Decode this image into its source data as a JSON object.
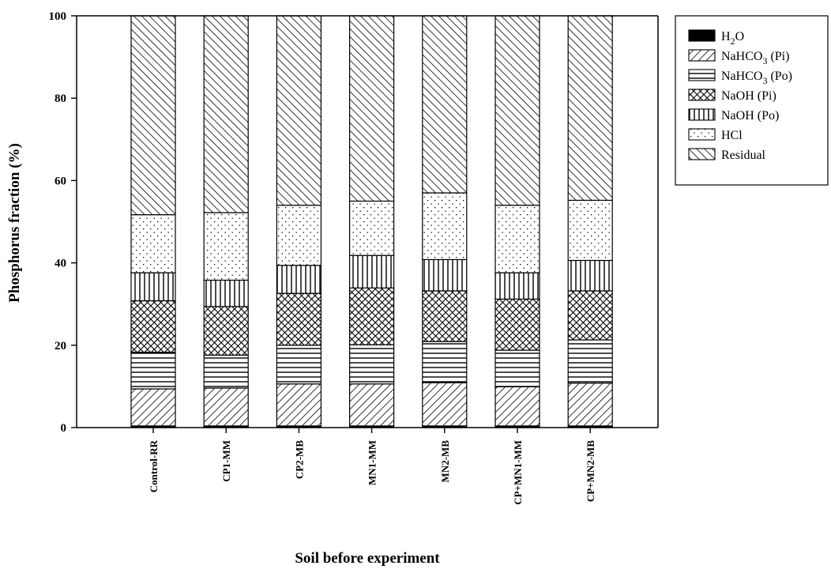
{
  "chart_data": {
    "type": "bar",
    "stacked": true,
    "xlabel": "Soil before experiment",
    "ylabel": "Phosphorus fraction (%)",
    "ylim": [
      0,
      100
    ],
    "yticks": [
      "0",
      "20",
      "40",
      "60",
      "80",
      "100"
    ],
    "categories": [
      "Control-RR",
      "CP1-MM",
      "CP2-MB",
      "MN1-MM",
      "MN2-MB",
      "CP+MN1-MM",
      "CP+MN2-MB"
    ],
    "legend_position": "top-right, outside plot",
    "series": [
      {
        "name": "H2O",
        "label_main": "H",
        "label_sub": "2",
        "label_tail": "O",
        "pattern": "solid",
        "values": [
          0.4,
          0.4,
          0.4,
          0.4,
          0.4,
          0.4,
          0.4
        ]
      },
      {
        "name": "NaHCO3 (Pi)",
        "label_main": "NaHCO",
        "label_sub": "3",
        "label_tail": " (Pi)",
        "pattern": "diag-fwd",
        "values": [
          9.0,
          9.2,
          10.2,
          10.2,
          10.5,
          9.5,
          10.4
        ]
      },
      {
        "name": "NaHCO3 (Po)",
        "label_main": "NaHCO",
        "label_sub": "3",
        "label_tail": " (Po)",
        "pattern": "horizontal",
        "values": [
          8.9,
          8.0,
          9.4,
          9.5,
          10.0,
          8.9,
          10.5
        ]
      },
      {
        "name": "NaOH (Pi)",
        "label_main": "NaOH (Pi)",
        "label_sub": "",
        "label_tail": "",
        "pattern": "crosshatch",
        "values": [
          12.5,
          11.8,
          12.6,
          13.8,
          12.3,
          12.4,
          11.9
        ]
      },
      {
        "name": "NaOH (Po)",
        "label_main": "NaOH (Po)",
        "label_sub": "",
        "label_tail": "",
        "pattern": "vertical",
        "values": [
          6.8,
          6.4,
          6.8,
          7.9,
          7.6,
          6.4,
          7.4
        ]
      },
      {
        "name": "HCl",
        "label_main": "HCl",
        "label_sub": "",
        "label_tail": "",
        "pattern": "dots",
        "values": [
          14.1,
          16.4,
          14.6,
          13.2,
          16.2,
          16.4,
          14.6
        ]
      },
      {
        "name": "Residual",
        "label_main": "Residual",
        "label_sub": "",
        "label_tail": "",
        "pattern": "diag-back",
        "values": [
          48.3,
          47.8,
          46.0,
          45.0,
          43.0,
          46.0,
          44.8
        ]
      }
    ]
  }
}
